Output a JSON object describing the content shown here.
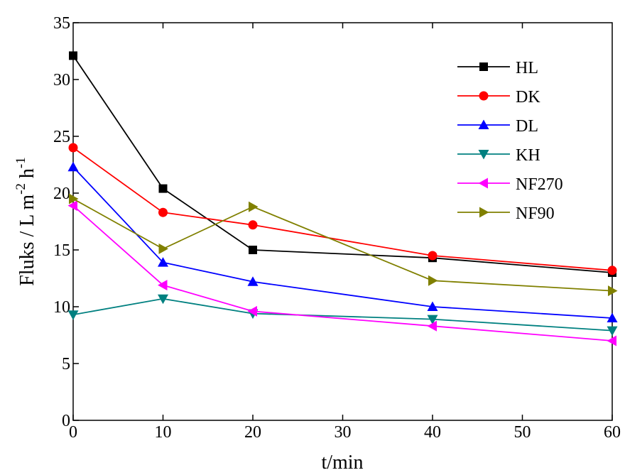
{
  "chart_data": {
    "type": "line",
    "xlabel": "t/min",
    "ylabel": {
      "main": "Fluks / L m",
      "sup1": "-2",
      "mid": " h",
      "sup2": "-1"
    },
    "xlim": [
      0,
      60
    ],
    "ylim": [
      0,
      35
    ],
    "xticks": [
      0,
      10,
      20,
      30,
      40,
      50,
      60
    ],
    "yticks": [
      0,
      5,
      10,
      15,
      20,
      25,
      30,
      35
    ],
    "grid": false,
    "legend_position": "top-right",
    "x": [
      0,
      10,
      20,
      40,
      60
    ],
    "series": [
      {
        "name": "HL",
        "color": "#000000",
        "marker": "square",
        "values": [
          32.1,
          20.4,
          15.0,
          14.3,
          13.0
        ]
      },
      {
        "name": "DK",
        "color": "#ff0000",
        "marker": "circle",
        "values": [
          24.0,
          18.3,
          17.2,
          14.5,
          13.2
        ]
      },
      {
        "name": "DL",
        "color": "#0000ff",
        "marker": "triangle-up",
        "values": [
          22.3,
          13.9,
          12.2,
          10.0,
          9.0
        ]
      },
      {
        "name": "KH",
        "color": "#008080",
        "marker": "triangle-down",
        "values": [
          9.3,
          10.7,
          9.4,
          8.9,
          7.9
        ]
      },
      {
        "name": "NF270",
        "color": "#ff00ff",
        "marker": "triangle-left",
        "values": [
          18.9,
          11.9,
          9.6,
          8.3,
          7.0
        ]
      },
      {
        "name": "NF90",
        "color": "#808000",
        "marker": "triangle-right",
        "values": [
          19.5,
          15.1,
          18.8,
          12.3,
          11.4
        ]
      }
    ]
  }
}
